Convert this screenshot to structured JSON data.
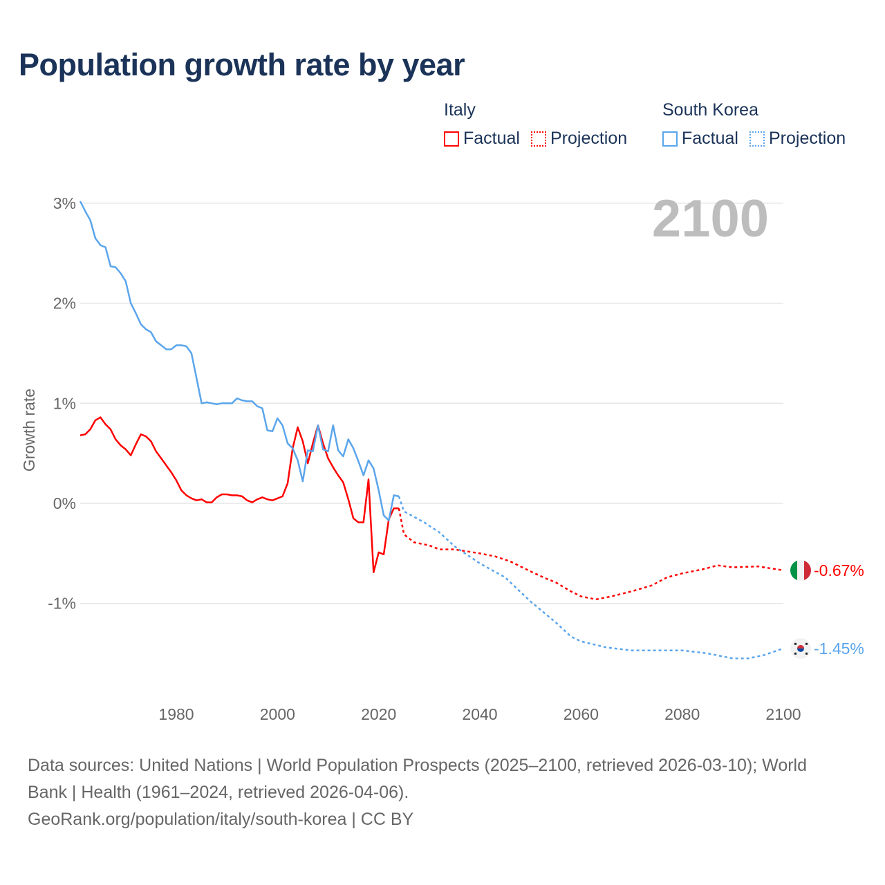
{
  "title": "Population growth rate by year",
  "legend": {
    "groups": [
      {
        "name": "Italy",
        "factual": "Factual",
        "projection": "Projection",
        "color": "#ff0000"
      },
      {
        "name": "South Korea",
        "factual": "Factual",
        "projection": "Projection",
        "color": "#5aa5ec"
      }
    ]
  },
  "year_label": "2100",
  "footer": {
    "line1": "Data sources: United Nations | World Population Prospects (2025–2100, retrieved 2026-03-10); World",
    "line2": "Bank | Health (1961–2024, retrieved 2026-04-06).",
    "line3": "GeoRank.org/population/italy/south-korea | CC BY"
  },
  "chart_data": {
    "type": "line",
    "title": "Population growth rate by year",
    "xlabel": "",
    "ylabel": "Growth rate",
    "xlim": [
      1961,
      2100
    ],
    "ylim": [
      -1.8,
      3.0
    ],
    "xticks": [
      1980,
      2000,
      2020,
      2040,
      2060,
      2080,
      2100
    ],
    "yticks": [
      {
        "v": 3,
        "label": "3%"
      },
      {
        "v": 2,
        "label": "2%"
      },
      {
        "v": 1,
        "label": "1%"
      },
      {
        "v": 0,
        "label": "0%"
      },
      {
        "v": -1,
        "label": "-1%"
      }
    ],
    "grid": true,
    "series": [
      {
        "name": "Italy",
        "color": "#ff0000",
        "end_label": "-0.67%",
        "flag": "italy-flag",
        "factual": {
          "start": 1961,
          "values": [
            0.68,
            0.69,
            0.74,
            0.83,
            0.86,
            0.79,
            0.74,
            0.64,
            0.58,
            0.54,
            0.48,
            0.59,
            0.69,
            0.67,
            0.62,
            0.52,
            0.45,
            0.38,
            0.31,
            0.23,
            0.13,
            0.08,
            0.05,
            0.03,
            0.04,
            0.01,
            0.01,
            0.06,
            0.09,
            0.09,
            0.08,
            0.08,
            0.07,
            0.03,
            0.01,
            0.04,
            0.06,
            0.04,
            0.03,
            0.05,
            0.07,
            0.2,
            0.55,
            0.76,
            0.62,
            0.4,
            0.6,
            0.78,
            0.6,
            0.45,
            0.36,
            0.28,
            0.21,
            0.04,
            -0.15,
            -0.19,
            -0.19,
            0.24,
            -0.69,
            -0.49,
            -0.51,
            -0.16,
            -0.05,
            -0.05
          ]
        },
        "projection": [
          [
            2024,
            -0.05
          ],
          [
            2025,
            -0.31
          ],
          [
            2027,
            -0.39
          ],
          [
            2030,
            -0.42
          ],
          [
            2032,
            -0.46
          ],
          [
            2035,
            -0.46
          ],
          [
            2040,
            -0.5
          ],
          [
            2043,
            -0.53
          ],
          [
            2046,
            -0.58
          ],
          [
            2050,
            -0.68
          ],
          [
            2053,
            -0.75
          ],
          [
            2055,
            -0.79
          ],
          [
            2058,
            -0.88
          ],
          [
            2060,
            -0.93
          ],
          [
            2063,
            -0.96
          ],
          [
            2066,
            -0.93
          ],
          [
            2070,
            -0.88
          ],
          [
            2074,
            -0.82
          ],
          [
            2077,
            -0.74
          ],
          [
            2080,
            -0.7
          ],
          [
            2084,
            -0.66
          ],
          [
            2087,
            -0.62
          ],
          [
            2090,
            -0.64
          ],
          [
            2095,
            -0.63
          ],
          [
            2100,
            -0.67
          ]
        ]
      },
      {
        "name": "South Korea",
        "color": "#5aa5ec",
        "end_label": "-1.45%",
        "flag": "south-korea-flag",
        "factual": {
          "start": 1961,
          "values": [
            3.02,
            2.92,
            2.83,
            2.65,
            2.58,
            2.56,
            2.37,
            2.36,
            2.3,
            2.22,
            2.0,
            1.9,
            1.79,
            1.74,
            1.71,
            1.62,
            1.58,
            1.54,
            1.54,
            1.58,
            1.58,
            1.57,
            1.5,
            1.25,
            1.0,
            1.01,
            1.0,
            0.99,
            1.0,
            1.0,
            1.0,
            1.05,
            1.03,
            1.02,
            1.02,
            0.97,
            0.95,
            0.73,
            0.72,
            0.85,
            0.78,
            0.6,
            0.55,
            0.43,
            0.22,
            0.53,
            0.52,
            0.78,
            0.54,
            0.52,
            0.78,
            0.53,
            0.47,
            0.64,
            0.55,
            0.42,
            0.28,
            0.43,
            0.35,
            0.13,
            -0.12,
            -0.17,
            0.08,
            0.07
          ]
        },
        "projection": [
          [
            2024,
            0.07
          ],
          [
            2025,
            -0.08
          ],
          [
            2029,
            -0.19
          ],
          [
            2032,
            -0.29
          ],
          [
            2035,
            -0.43
          ],
          [
            2040,
            -0.6
          ],
          [
            2045,
            -0.74
          ],
          [
            2050,
            -0.98
          ],
          [
            2055,
            -1.19
          ],
          [
            2058,
            -1.33
          ],
          [
            2060,
            -1.38
          ],
          [
            2065,
            -1.44
          ],
          [
            2070,
            -1.47
          ],
          [
            2075,
            -1.47
          ],
          [
            2080,
            -1.47
          ],
          [
            2085,
            -1.5
          ],
          [
            2090,
            -1.55
          ],
          [
            2093,
            -1.55
          ],
          [
            2096,
            -1.52
          ],
          [
            2100,
            -1.45
          ]
        ]
      }
    ]
  }
}
